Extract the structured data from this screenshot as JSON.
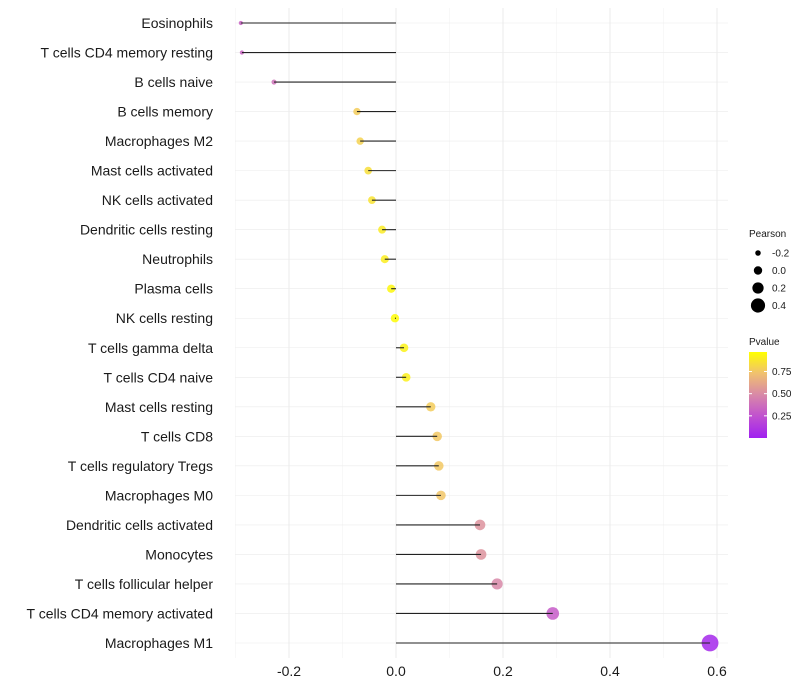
{
  "chart_data": {
    "type": "lollipop",
    "title": "",
    "xlabel": "",
    "ylabel": "",
    "xlim": [
      -0.3,
      0.62
    ],
    "xticks": [
      "-0.2",
      "0.0",
      "0.2",
      "0.4",
      "0.6"
    ],
    "xtick_values": [
      -0.2,
      0,
      0.2,
      0.4,
      0.6
    ],
    "grid": true,
    "categories": [
      "Eosinophils",
      "T cells CD4 memory resting",
      "B cells naive",
      "B cells memory",
      "Macrophages M2",
      "Mast cells activated",
      "NK cells activated",
      "Dendritic cells resting",
      "Neutrophils",
      "Plasma cells",
      "NK cells resting",
      "T cells gamma delta",
      "T cells CD4 naive",
      "Mast cells resting",
      "T cells CD8",
      "T cells regulatory  Tregs",
      "Macrophages M0",
      "Dendritic cells activated",
      "Monocytes",
      "T cells follicular helper",
      "T cells CD4 memory activated",
      "Macrophages M1"
    ],
    "pearson": [
      -0.29,
      -0.288,
      -0.228,
      -0.073,
      -0.067,
      -0.052,
      -0.045,
      -0.026,
      -0.021,
      -0.009,
      -0.002,
      0.015,
      0.019,
      0.065,
      0.077,
      0.08,
      0.084,
      0.157,
      0.159,
      0.189,
      0.293,
      0.587
    ],
    "pvalue": [
      0.33,
      0.34,
      0.4,
      0.8,
      0.82,
      0.87,
      0.89,
      0.92,
      0.93,
      0.97,
      0.99,
      0.95,
      0.94,
      0.8,
      0.78,
      0.78,
      0.77,
      0.55,
      0.55,
      0.5,
      0.3,
      0.04
    ],
    "legend": {
      "size_title": "Pearson",
      "size_labels": [
        "-0.2",
        "0.0",
        "0.2",
        "0.4"
      ],
      "size_values": [
        -0.2,
        0,
        0.2,
        0.4
      ],
      "color_title": "Pvalue",
      "color_labels": [
        "0.75",
        "0.50",
        "0.25"
      ],
      "color_values": [
        0.75,
        0.5,
        0.25
      ],
      "placement": "right"
    },
    "colors": {
      "low": "#A020F0",
      "mid": "#D888A8",
      "high": "#FFFF00"
    }
  }
}
